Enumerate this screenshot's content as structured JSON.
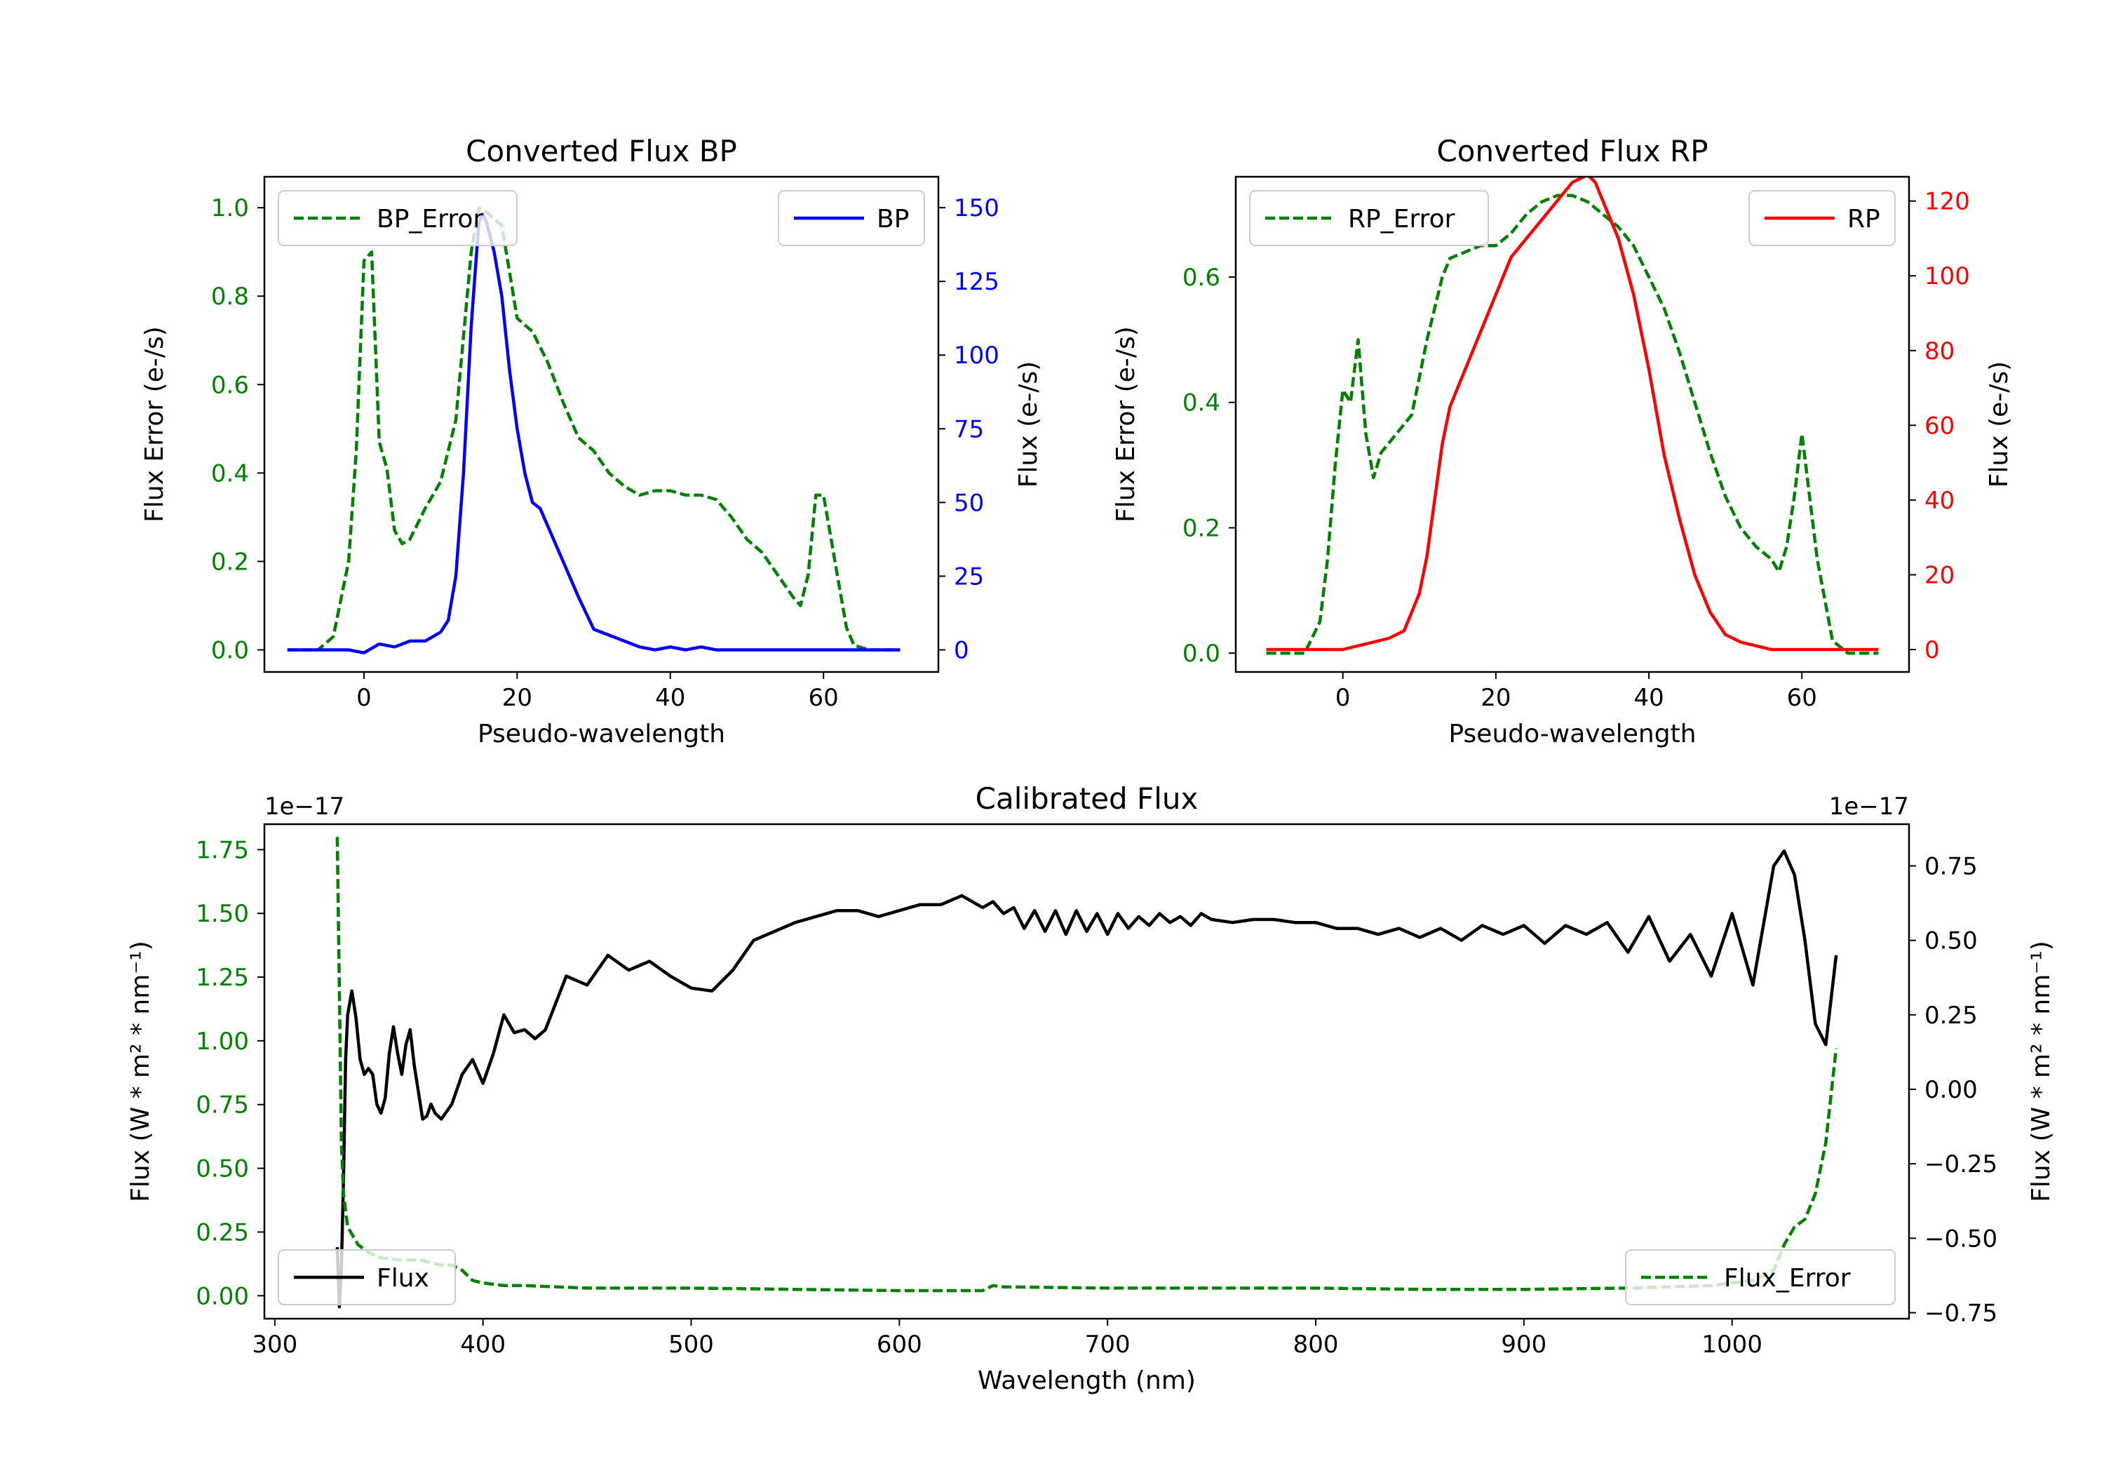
{
  "chart_data": [
    {
      "type": "line",
      "title": "Converted Flux BP",
      "xlabel": "Pseudo-wavelength",
      "ylabel_left": "Flux Error (e-/s)",
      "ylabel_right": "Flux (e-/s)",
      "xlim": [
        -13,
        75
      ],
      "ylim_left": [
        -0.05,
        1.07
      ],
      "ylim_right": [
        -7.5,
        160.5
      ],
      "xticks": [
        0,
        20,
        40,
        60
      ],
      "yticks_left": [
        0.0,
        0.2,
        0.4,
        0.6,
        0.8,
        1.0
      ],
      "yticks_right": [
        0,
        25,
        50,
        75,
        100,
        125,
        150
      ],
      "colors": {
        "error": "#008000",
        "flux": "#0000ff",
        "left_axis": "#008000",
        "right_axis": "#0000ff"
      },
      "legend_left": "top-left",
      "legend_right": "top-right",
      "series": [
        {
          "name": "BP_Error",
          "axis": "left",
          "style": "dashed",
          "x": [
            -10,
            -6,
            -4,
            -2,
            -1,
            0,
            1,
            2,
            3,
            4,
            5,
            6,
            8,
            10,
            12,
            14,
            15,
            16,
            18,
            20,
            22,
            24,
            26,
            28,
            30,
            32,
            34,
            36,
            38,
            40,
            42,
            44,
            46,
            48,
            50,
            52,
            54,
            56,
            57,
            58,
            59,
            60,
            61,
            62,
            63,
            64,
            66,
            70
          ],
          "y": [
            0.0,
            0.0,
            0.03,
            0.2,
            0.45,
            0.88,
            0.9,
            0.47,
            0.41,
            0.27,
            0.24,
            0.25,
            0.32,
            0.38,
            0.52,
            0.9,
            1.0,
            0.99,
            0.96,
            0.75,
            0.72,
            0.65,
            0.56,
            0.48,
            0.45,
            0.4,
            0.37,
            0.35,
            0.36,
            0.36,
            0.35,
            0.35,
            0.34,
            0.3,
            0.25,
            0.22,
            0.17,
            0.12,
            0.1,
            0.17,
            0.35,
            0.35,
            0.25,
            0.15,
            0.05,
            0.01,
            0.0,
            0.0
          ]
        },
        {
          "name": "BP",
          "axis": "right",
          "style": "solid",
          "x": [
            -10,
            -5,
            -2,
            0,
            2,
            4,
            6,
            8,
            10,
            11,
            12,
            13,
            14,
            15,
            15.5,
            16,
            17,
            18,
            19,
            20,
            21,
            22,
            23,
            24,
            26,
            28,
            30,
            32,
            34,
            36,
            38,
            40,
            42,
            44,
            46,
            48,
            50,
            55,
            60,
            65,
            70
          ],
          "y": [
            0,
            0,
            0,
            -1,
            2,
            1,
            3,
            3,
            6,
            10,
            25,
            60,
            110,
            145,
            148,
            145,
            135,
            120,
            95,
            75,
            60,
            50,
            48,
            42,
            30,
            18,
            7,
            5,
            3,
            1,
            0,
            1,
            0,
            1,
            0,
            0,
            0,
            0,
            0,
            0,
            0
          ]
        }
      ]
    },
    {
      "type": "line",
      "title": "Converted Flux RP",
      "xlabel": "Pseudo-wavelength",
      "ylabel_left": "Flux Error (e-/s)",
      "ylabel_right": "Flux (e-/s)",
      "xlim": [
        -14,
        74
      ],
      "ylim_left": [
        -0.03,
        0.76
      ],
      "ylim_right": [
        -6,
        126.5
      ],
      "xticks": [
        0,
        20,
        40,
        60
      ],
      "yticks_left": [
        0.0,
        0.2,
        0.4,
        0.6
      ],
      "yticks_right": [
        0,
        20,
        40,
        60,
        80,
        100,
        120
      ],
      "colors": {
        "error": "#008000",
        "flux": "#ff0000",
        "left_axis": "#008000",
        "right_axis": "#ff0000"
      },
      "legend_left": "top-left",
      "legend_right": "top-right",
      "series": [
        {
          "name": "RP_Error",
          "axis": "left",
          "style": "dashed",
          "x": [
            -10,
            -5,
            -3,
            -2,
            -1,
            0,
            1,
            2,
            3,
            4,
            5,
            7,
            9,
            11,
            13,
            14,
            16,
            18,
            20,
            22,
            24,
            26,
            28,
            30,
            32,
            34,
            36,
            38,
            40,
            42,
            44,
            46,
            48,
            50,
            52,
            54,
            56,
            57,
            58,
            59,
            60,
            62,
            64,
            66,
            70
          ],
          "y": [
            0.0,
            0.0,
            0.05,
            0.15,
            0.3,
            0.42,
            0.4,
            0.5,
            0.35,
            0.28,
            0.32,
            0.35,
            0.38,
            0.5,
            0.6,
            0.63,
            0.64,
            0.65,
            0.65,
            0.67,
            0.7,
            0.72,
            0.73,
            0.73,
            0.72,
            0.7,
            0.68,
            0.65,
            0.6,
            0.55,
            0.48,
            0.4,
            0.32,
            0.25,
            0.2,
            0.17,
            0.15,
            0.13,
            0.17,
            0.25,
            0.35,
            0.15,
            0.02,
            0.0,
            0.0
          ]
        },
        {
          "name": "RP",
          "axis": "right",
          "style": "solid",
          "x": [
            -10,
            -5,
            0,
            2,
            4,
            6,
            8,
            10,
            11,
            12,
            13,
            14,
            16,
            18,
            20,
            22,
            24,
            26,
            28,
            30,
            32,
            33,
            34,
            36,
            38,
            40,
            42,
            44,
            46,
            48,
            50,
            52,
            54,
            56,
            58,
            60,
            62,
            65,
            70
          ],
          "y": [
            0,
            0,
            0,
            1,
            2,
            3,
            5,
            15,
            25,
            40,
            55,
            65,
            75,
            85,
            95,
            105,
            110,
            115,
            120,
            125,
            127,
            125,
            120,
            110,
            95,
            75,
            52,
            35,
            20,
            10,
            4,
            2,
            1,
            0,
            0,
            0,
            0,
            0,
            0
          ]
        }
      ]
    },
    {
      "type": "line",
      "title": "Calibrated Flux",
      "xlabel": "Wavelength (nm)",
      "ylabel_left": "Flux (W * m² * nm⁻¹)",
      "ylabel_right": "Flux (W * m² * nm⁻¹)",
      "offset_left": "1e−17",
      "offset_right": "1e−17",
      "xlim": [
        295,
        1085
      ],
      "ylim_left": [
        -0.09,
        1.85
      ],
      "ylim_right": [
        -0.77,
        0.89
      ],
      "xticks": [
        300,
        400,
        500,
        600,
        700,
        800,
        900,
        1000
      ],
      "yticks_left": [
        0.0,
        0.25,
        0.5,
        0.75,
        1.0,
        1.25,
        1.5,
        1.75
      ],
      "yticks_left_labels": [
        "0.00",
        "0.25",
        "0.50",
        "0.75",
        "1.00",
        "1.25",
        "1.50",
        "1.75"
      ],
      "yticks_right": [
        -0.75,
        -0.5,
        -0.25,
        0.0,
        0.25,
        0.5,
        0.75
      ],
      "yticks_right_labels": [
        "−0.75",
        "−0.50",
        "−0.25",
        "0.00",
        "0.25",
        "0.50",
        "0.75"
      ],
      "colors": {
        "error": "#008000",
        "flux": "#000000",
        "left_axis": "#008000",
        "right_axis": "#000000"
      },
      "legend_left": "bottom-left",
      "legend_right": "bottom-right",
      "series": [
        {
          "name": "Flux",
          "axis": "right",
          "style": "solid",
          "x": [
            330,
            331,
            332,
            333,
            334,
            335,
            337,
            339,
            341,
            343,
            345,
            347,
            349,
            351,
            353,
            355,
            357,
            359,
            361,
            363,
            365,
            367,
            369,
            371,
            373,
            375,
            377,
            380,
            385,
            390,
            395,
            400,
            405,
            410,
            415,
            420,
            425,
            430,
            440,
            450,
            460,
            470,
            480,
            490,
            500,
            510,
            520,
            530,
            540,
            550,
            560,
            570,
            580,
            590,
            600,
            610,
            620,
            630,
            640,
            645,
            650,
            655,
            660,
            665,
            670,
            675,
            680,
            685,
            690,
            695,
            700,
            705,
            710,
            715,
            720,
            725,
            730,
            735,
            740,
            745,
            750,
            760,
            770,
            780,
            790,
            800,
            810,
            820,
            830,
            840,
            850,
            860,
            870,
            880,
            890,
            900,
            910,
            920,
            930,
            940,
            950,
            960,
            970,
            980,
            990,
            1000,
            1010,
            1020,
            1025,
            1030,
            1035,
            1040,
            1045,
            1050
          ],
          "y": [
            -0.53,
            -0.73,
            -0.6,
            -0.3,
            0.1,
            0.25,
            0.33,
            0.24,
            0.1,
            0.05,
            0.07,
            0.05,
            -0.05,
            -0.08,
            -0.03,
            0.12,
            0.21,
            0.12,
            0.05,
            0.15,
            0.2,
            0.08,
            -0.01,
            -0.1,
            -0.09,
            -0.05,
            -0.08,
            -0.1,
            -0.05,
            0.05,
            0.1,
            0.02,
            0.12,
            0.25,
            0.19,
            0.2,
            0.17,
            0.2,
            0.38,
            0.35,
            0.45,
            0.4,
            0.43,
            0.38,
            0.34,
            0.33,
            0.4,
            0.5,
            0.53,
            0.56,
            0.58,
            0.6,
            0.6,
            0.58,
            0.6,
            0.62,
            0.62,
            0.65,
            0.61,
            0.63,
            0.59,
            0.61,
            0.54,
            0.6,
            0.53,
            0.6,
            0.52,
            0.6,
            0.53,
            0.59,
            0.52,
            0.59,
            0.54,
            0.58,
            0.55,
            0.59,
            0.56,
            0.58,
            0.55,
            0.59,
            0.57,
            0.56,
            0.57,
            0.57,
            0.56,
            0.56,
            0.54,
            0.54,
            0.52,
            0.54,
            0.51,
            0.54,
            0.5,
            0.55,
            0.52,
            0.55,
            0.49,
            0.55,
            0.52,
            0.56,
            0.46,
            0.58,
            0.43,
            0.52,
            0.38,
            0.59,
            0.35,
            0.75,
            0.8,
            0.72,
            0.5,
            0.22,
            0.15,
            0.45
          ]
        },
        {
          "name": "Flux_Error",
          "axis": "left",
          "style": "dashed",
          "x": [
            330,
            331,
            332,
            333,
            335,
            340,
            345,
            350,
            360,
            370,
            380,
            385,
            390,
            395,
            400,
            410,
            420,
            450,
            500,
            550,
            600,
            630,
            640,
            645,
            650,
            700,
            750,
            800,
            850,
            900,
            950,
            990,
            1000,
            1010,
            1020,
            1025,
            1030,
            1035,
            1040,
            1045,
            1050
          ],
          "y": [
            1.8,
            1.2,
            0.6,
            0.4,
            0.27,
            0.2,
            0.17,
            0.15,
            0.14,
            0.14,
            0.12,
            0.12,
            0.1,
            0.06,
            0.05,
            0.04,
            0.04,
            0.03,
            0.03,
            0.025,
            0.02,
            0.02,
            0.02,
            0.04,
            0.035,
            0.03,
            0.03,
            0.03,
            0.025,
            0.025,
            0.03,
            0.04,
            0.05,
            0.06,
            0.1,
            0.2,
            0.27,
            0.3,
            0.4,
            0.6,
            0.97
          ]
        }
      ]
    }
  ]
}
